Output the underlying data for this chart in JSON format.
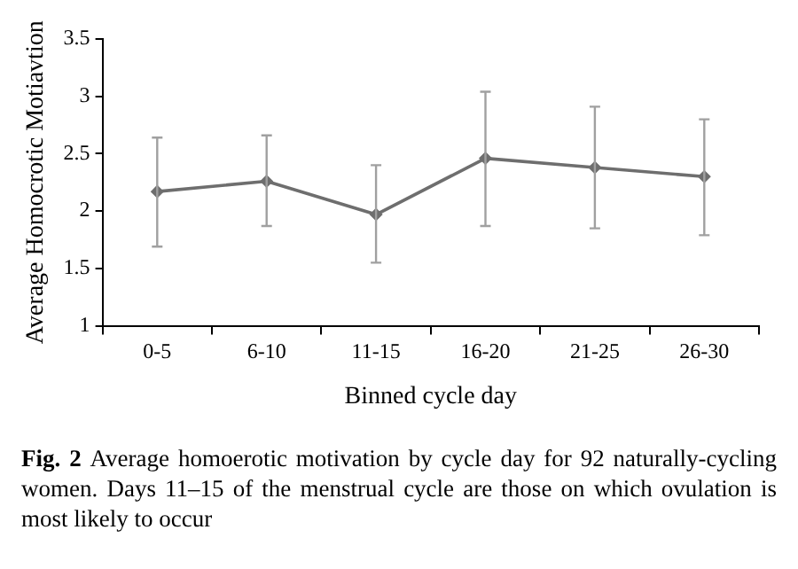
{
  "chart_data": {
    "type": "line",
    "xlabel": "Binned cycle day",
    "ylabel": "Average Homocrotic Motiavtion",
    "categories": [
      "0-5",
      "6-10",
      "11-15",
      "16-20",
      "21-25",
      "26-30"
    ],
    "series": [
      {
        "color": "#6e6e6e",
        "values": [
          2.17,
          2.26,
          1.97,
          2.46,
          2.38,
          2.3
        ],
        "errors": [
          [
            1.69,
            2.64
          ],
          [
            1.87,
            2.66
          ],
          [
            1.55,
            2.4
          ],
          [
            1.87,
            3.04
          ],
          [
            1.85,
            2.91
          ],
          [
            1.79,
            2.8
          ]
        ]
      }
    ],
    "ylim": [
      1,
      3.5
    ],
    "yticks": [
      1,
      1.5,
      2,
      2.5,
      3,
      3.5
    ],
    "grid": false,
    "legend": false,
    "marker": "diamond",
    "line_style": "solid",
    "annotations": [
      "Fig. 2",
      "Average homoerotic motivation by cycle day for 92 naturally-cycling women. Days 11–15 of the menstrual cycle are those on which ovulation is most likely to occur"
    ]
  }
}
